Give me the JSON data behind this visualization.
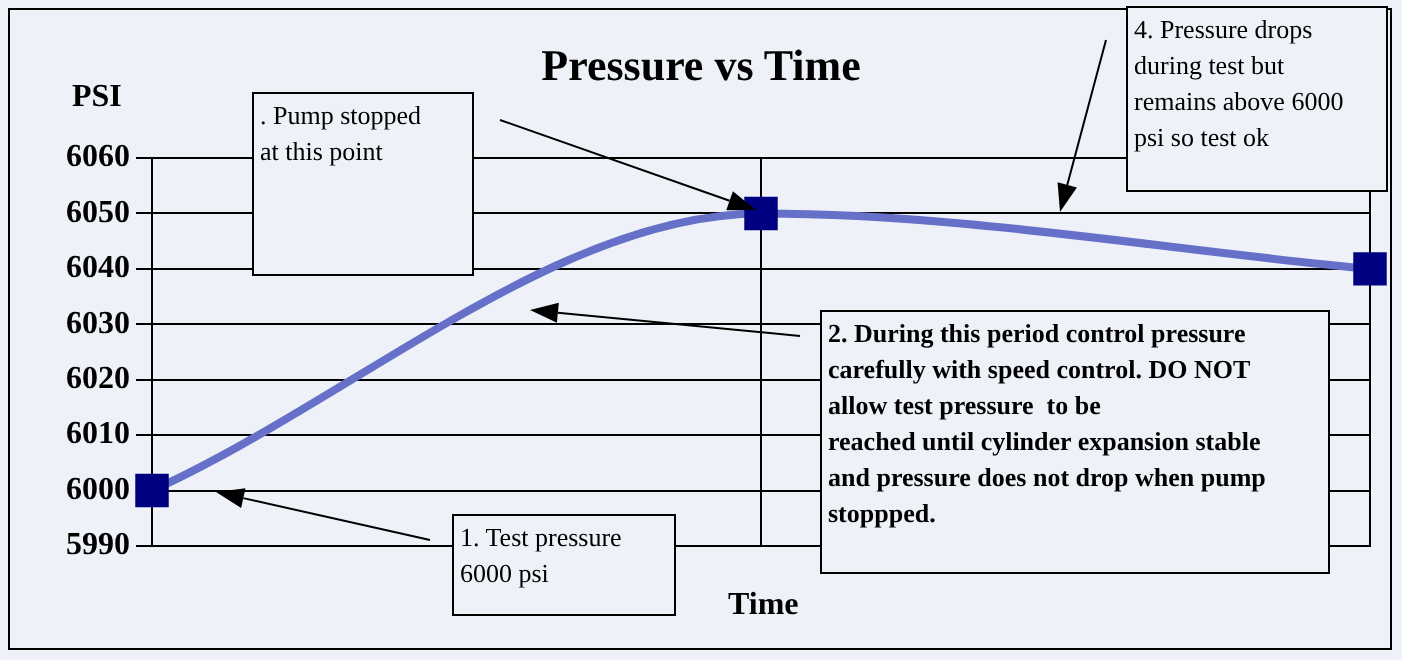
{
  "chart_data": {
    "type": "line",
    "title": "Pressure vs Time",
    "xlabel": "Time",
    "ylabel": "PSI",
    "categories": [
      null,
      null,
      null
    ],
    "series": [
      {
        "color": "#6670c8",
        "values": [
          6000,
          6050,
          6040
        ]
      }
    ],
    "ylim": [
      5990,
      6060
    ],
    "yticks": [
      5990,
      6000,
      6010,
      6020,
      6030,
      6040,
      6050,
      6060
    ],
    "grid": true,
    "legend": false,
    "marker": "square",
    "line_style": "solid",
    "tick_labels": "y",
    "annotations": [
      ". Pump stopped\nat this point",
      "1. Test pressure\n6000 psi",
      "2. During this period control pressure\ncarefully with speed control. DO NOT\nallow test pressure  to be\nreached until cylinder expansion stable\nand pressure does not drop when pump\nstoppped.",
      "4. Pressure drops\nduring test but\nremains above 6000\npsi so test ok"
    ]
  }
}
